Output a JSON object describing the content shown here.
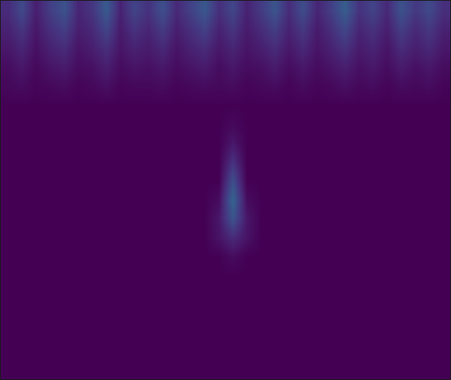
{
  "chart_data": {
    "type": "heatmap",
    "color": "Viridis",
    "tick_labels": false,
    "grid": false,
    "zlim": [
      0,
      1
    ],
    "cells": [
      [
        0.12,
        0.22,
        0.08,
        0.18,
        0.25,
        0.1,
        0.15,
        0.28,
        0.09,
        0.2,
        0.14,
        0.24,
        0.11,
        0.19,
        0.27,
        0.13,
        0.21,
        0.09,
        0.17,
        0.26,
        0.12,
        0.23,
        0.1,
        0.18,
        0.29,
        0.14,
        0.2,
        0.11,
        0.25,
        0.16,
        0.22,
        0.13
      ],
      [
        0.09,
        0.15,
        0.06,
        0.13,
        0.18,
        0.08,
        0.11,
        0.2,
        0.07,
        0.14,
        0.1,
        0.17,
        0.08,
        0.13,
        0.19,
        0.09,
        0.15,
        0.07,
        0.12,
        0.18,
        0.09,
        0.16,
        0.07,
        0.13,
        0.21,
        0.1,
        0.14,
        0.08,
        0.18,
        0.11,
        0.16,
        0.09
      ],
      [
        0.06,
        0.1,
        0.04,
        0.09,
        0.12,
        0.05,
        0.08,
        0.13,
        0.05,
        0.09,
        0.07,
        0.11,
        0.05,
        0.09,
        0.12,
        0.06,
        0.1,
        0.05,
        0.08,
        0.12,
        0.06,
        0.11,
        0.05,
        0.09,
        0.14,
        0.07,
        0.1,
        0.05,
        0.12,
        0.08,
        0.11,
        0.06
      ],
      [
        0.03,
        0.06,
        0.02,
        0.05,
        0.07,
        0.03,
        0.04,
        0.08,
        0.03,
        0.05,
        0.04,
        0.06,
        0.03,
        0.05,
        0.07,
        0.03,
        0.06,
        0.03,
        0.04,
        0.07,
        0.03,
        0.06,
        0.03,
        0.05,
        0.08,
        0.04,
        0.06,
        0.03,
        0.07,
        0.04,
        0.06,
        0.03
      ],
      [
        0.02,
        0.03,
        0.01,
        0.02,
        0.03,
        0.01,
        0.02,
        0.04,
        0.01,
        0.02,
        0.02,
        0.03,
        0.01,
        0.02,
        0.03,
        0.02,
        0.03,
        0.01,
        0.02,
        0.03,
        0.01,
        0.03,
        0.01,
        0.02,
        0.04,
        0.02,
        0.03,
        0.01,
        0.03,
        0.02,
        0.03,
        0.01
      ],
      [
        0,
        0,
        0,
        0,
        0,
        0,
        0,
        0,
        0,
        0,
        0,
        0,
        0,
        0,
        0,
        0,
        0,
        0,
        0,
        0,
        0,
        0,
        0,
        0,
        0,
        0,
        0,
        0,
        0,
        0,
        0,
        0
      ],
      [
        0,
        0,
        0,
        0,
        0,
        0,
        0,
        0,
        0,
        0,
        0,
        0,
        0,
        0,
        0,
        0,
        0.02,
        0,
        0,
        0,
        0,
        0,
        0,
        0,
        0,
        0,
        0,
        0,
        0,
        0,
        0,
        0
      ],
      [
        0,
        0,
        0,
        0,
        0,
        0,
        0,
        0,
        0,
        0,
        0,
        0,
        0,
        0,
        0,
        0,
        0.06,
        0,
        0,
        0,
        0,
        0,
        0,
        0,
        0,
        0,
        0,
        0,
        0,
        0,
        0,
        0
      ],
      [
        0,
        0,
        0,
        0,
        0,
        0,
        0,
        0,
        0,
        0,
        0,
        0,
        0,
        0,
        0,
        0,
        0.14,
        0,
        0,
        0,
        0,
        0,
        0,
        0,
        0,
        0,
        0,
        0,
        0,
        0,
        0,
        0
      ],
      [
        0,
        0,
        0,
        0,
        0,
        0,
        0,
        0,
        0,
        0,
        0,
        0,
        0,
        0,
        0,
        0,
        0.24,
        0,
        0,
        0,
        0,
        0,
        0,
        0,
        0,
        0,
        0,
        0,
        0,
        0,
        0,
        0
      ],
      [
        0,
        0,
        0,
        0,
        0,
        0,
        0,
        0,
        0,
        0,
        0,
        0,
        0,
        0,
        0,
        0.03,
        0.32,
        0.03,
        0,
        0,
        0,
        0,
        0,
        0,
        0,
        0,
        0,
        0,
        0,
        0,
        0,
        0
      ],
      [
        0,
        0,
        0,
        0,
        0,
        0,
        0,
        0,
        0,
        0,
        0,
        0,
        0,
        0,
        0,
        0.06,
        0.26,
        0.06,
        0,
        0,
        0,
        0,
        0,
        0,
        0,
        0,
        0,
        0,
        0,
        0,
        0,
        0
      ],
      [
        0,
        0,
        0,
        0,
        0,
        0,
        0,
        0,
        0,
        0,
        0,
        0,
        0,
        0,
        0,
        0.05,
        0.12,
        0.05,
        0,
        0,
        0,
        0,
        0,
        0,
        0,
        0,
        0,
        0,
        0,
        0,
        0,
        0
      ],
      [
        0,
        0,
        0,
        0,
        0,
        0,
        0,
        0,
        0,
        0,
        0,
        0,
        0,
        0,
        0,
        0,
        0.03,
        0,
        0,
        0,
        0,
        0,
        0,
        0,
        0,
        0,
        0,
        0,
        0,
        0,
        0,
        0
      ],
      [
        0,
        0,
        0,
        0,
        0,
        0,
        0,
        0,
        0,
        0,
        0,
        0,
        0,
        0,
        0,
        0,
        0,
        0,
        0,
        0,
        0,
        0,
        0,
        0,
        0,
        0,
        0,
        0,
        0,
        0,
        0,
        0
      ],
      [
        0,
        0,
        0,
        0,
        0,
        0,
        0,
        0,
        0,
        0,
        0,
        0,
        0,
        0,
        0,
        0,
        0,
        0,
        0,
        0,
        0,
        0,
        0,
        0,
        0,
        0,
        0,
        0,
        0,
        0,
        0,
        0
      ],
      [
        0,
        0,
        0,
        0,
        0,
        0,
        0,
        0,
        0,
        0,
        0,
        0,
        0,
        0,
        0,
        0,
        0,
        0,
        0,
        0,
        0,
        0,
        0,
        0,
        0,
        0,
        0,
        0,
        0,
        0,
        0,
        0
      ],
      [
        0,
        0,
        0,
        0,
        0,
        0,
        0,
        0,
        0,
        0,
        0,
        0,
        0,
        0,
        0,
        0,
        0,
        0,
        0,
        0,
        0,
        0,
        0,
        0,
        0,
        0,
        0,
        0,
        0,
        0,
        0,
        0
      ],
      [
        0,
        0,
        0,
        0,
        0,
        0,
        0,
        0,
        0,
        0,
        0,
        0,
        0,
        0,
        0,
        0,
        0,
        0,
        0,
        0,
        0,
        0,
        0,
        0,
        0,
        0,
        0,
        0,
        0,
        0,
        0,
        0
      ],
      [
        0,
        0,
        0,
        0,
        0,
        0,
        0,
        0,
        0,
        0,
        0,
        0,
        0,
        0,
        0,
        0,
        0,
        0,
        0,
        0,
        0,
        0,
        0,
        0,
        0,
        0,
        0,
        0,
        0,
        0,
        0,
        0
      ]
    ]
  }
}
